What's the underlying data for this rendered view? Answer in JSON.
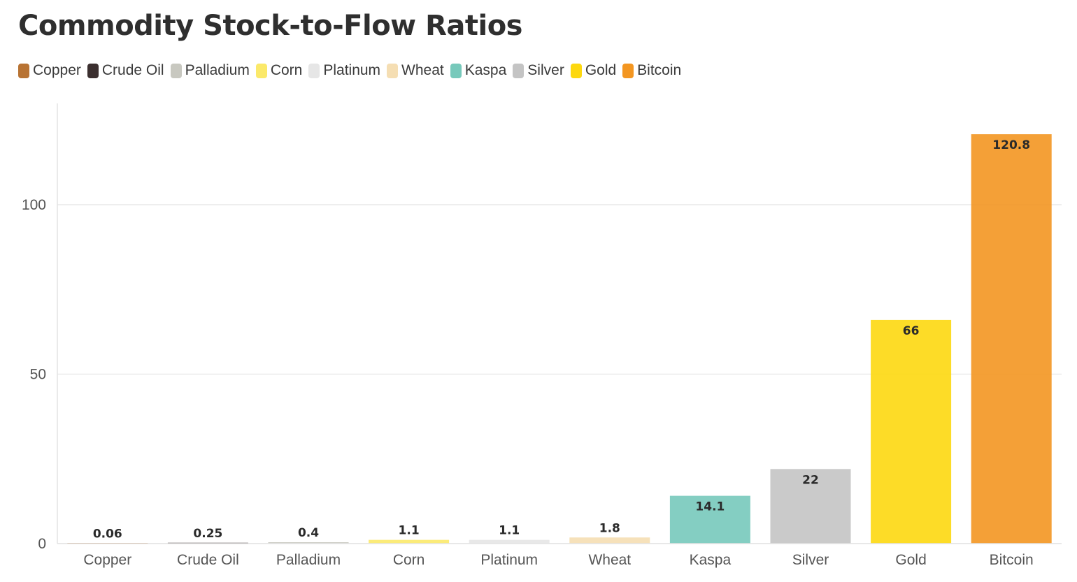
{
  "chart_data": {
    "type": "bar",
    "title": "Commodity Stock-to-Flow Ratios",
    "xlabel": "",
    "ylabel": "",
    "categories": [
      "Copper",
      "Crude Oil",
      "Palladium",
      "Corn",
      "Platinum",
      "Wheat",
      "Kaspa",
      "Silver",
      "Gold",
      "Bitcoin"
    ],
    "values": [
      0.06,
      0.25,
      0.4,
      1.1,
      1.1,
      1.8,
      14.1,
      22,
      66,
      120.8
    ],
    "value_labels": [
      "0.06",
      "0.25",
      "0.4",
      "1.1",
      "1.1",
      "1.8",
      "14.1",
      "22",
      "66",
      "120.8"
    ],
    "colors": [
      "#b87333",
      "#3b2f2f",
      "#c8c8c0",
      "#fbe96a",
      "#e6e6e6",
      "#f5deb3",
      "#77c9bb",
      "#c4c4c4",
      "#fdd80f",
      "#f39621"
    ],
    "yticks": [
      0,
      50,
      100
    ],
    "ylim": [
      0,
      128
    ],
    "grid": true,
    "legend": {
      "position": "top-left",
      "entries": [
        "Copper",
        "Crude Oil",
        "Palladium",
        "Corn",
        "Platinum",
        "Wheat",
        "Kaspa",
        "Silver",
        "Gold",
        "Bitcoin"
      ]
    }
  }
}
